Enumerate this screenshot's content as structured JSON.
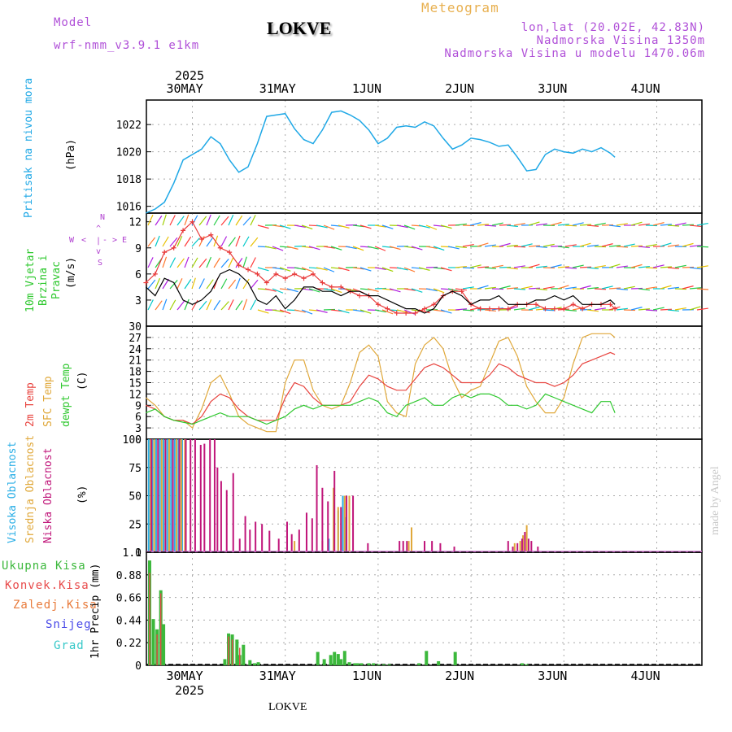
{
  "header": {
    "model_label": "Model",
    "model_name": "wrf-nmm_v3.9.1 e1km",
    "title": "LOKVE",
    "app_title": "Meteogram",
    "coords": "lon,lat (20.02E, 42.83N)",
    "elevation": "Nadmorska Visina 1350m",
    "model_elevation": "Nadmorska Visina u modelu 1470.06m",
    "year_top": "2025",
    "year_bottom": "2025",
    "footer_station": "LOKVE",
    "watermark": "made by Angel"
  },
  "colors": {
    "pressure": "#1fa8e6",
    "temp2m": "#e8433e",
    "sfc_temp": "#e0a83a",
    "dewpt": "#2ec82e",
    "cloud_high": "#29aee6",
    "cloud_mid": "#e0a83a",
    "cloud_low": "#c0167a",
    "rain_total": "#3cb83c",
    "rain_conv": "#e84a4a",
    "rain_frozen": "#e87a3a",
    "snow": "#4a4ae8",
    "hail": "#36c8c8",
    "wind_mean": "#000000",
    "wind_gust": "#e83a3a"
  },
  "chart_data": [
    {
      "type": "line",
      "panel": "pressure",
      "x_unit": "days since 30MAY 00Z",
      "x_ticks": [
        "30MAY",
        "31MAY",
        "1JUN",
        "2JUN",
        "3JUN",
        "4JUN"
      ],
      "title_label": "Pritisak na nivou mora",
      "ylabel": "(hPa)",
      "ylim": [
        1015.5,
        1023.8
      ],
      "yticks": [
        1016,
        1018,
        1020,
        1022
      ],
      "grid": true,
      "series": [
        {
          "name": "Pritisak na nivou mora",
          "x": [
            -0.5,
            -0.4,
            -0.3,
            -0.2,
            -0.1,
            0.0,
            0.1,
            0.2,
            0.3,
            0.4,
            0.5,
            0.6,
            0.7,
            0.8,
            0.9,
            1.0,
            1.1,
            1.2,
            1.3,
            1.4,
            1.5,
            1.6,
            1.7,
            1.8,
            1.9,
            2.0,
            2.1,
            2.2,
            2.3,
            2.4,
            2.5,
            2.6,
            2.7,
            2.8,
            2.9,
            3.0,
            3.1,
            3.2,
            3.3,
            3.4,
            3.5,
            3.6,
            3.7,
            3.8,
            3.9,
            4.0,
            4.1,
            4.2,
            4.3,
            4.4,
            4.5,
            4.55
          ],
          "values": [
            1015.5,
            1015.8,
            1016.3,
            1017.7,
            1019.4,
            1019.8,
            1020.2,
            1021.1,
            1020.6,
            1019.4,
            1018.5,
            1018.9,
            1020.6,
            1022.6,
            1022.7,
            1022.8,
            1021.7,
            1020.9,
            1020.6,
            1021.6,
            1022.9,
            1023.0,
            1022.7,
            1022.3,
            1021.6,
            1020.6,
            1021.0,
            1021.8,
            1021.9,
            1021.8,
            1022.2,
            1021.9,
            1021.0,
            1020.2,
            1020.5,
            1021.0,
            1020.9,
            1020.7,
            1020.4,
            1020.5,
            1019.6,
            1018.6,
            1018.7,
            1019.8,
            1020.2,
            1020.0,
            1019.9,
            1020.2,
            1020.0,
            1020.3,
            1019.9,
            1019.6
          ]
        }
      ]
    },
    {
      "type": "line",
      "panel": "wind",
      "title_label": "10m Vjetar Brzina i Pravac",
      "ylabel": "(m/s)",
      "ylim": [
        0,
        13
      ],
      "yticks": [
        3,
        6,
        9,
        12
      ],
      "compass": [
        "N",
        "W",
        "E",
        "S"
      ],
      "compass_marks": [
        "^",
        "v",
        "|",
        "<",
        ">",
        "-"
      ],
      "series": [
        {
          "name": "mean wind",
          "x": [
            -0.5,
            -0.4,
            -0.3,
            -0.2,
            -0.1,
            0.0,
            0.1,
            0.2,
            0.3,
            0.4,
            0.5,
            0.6,
            0.7,
            0.8,
            0.9,
            1.0,
            1.1,
            1.2,
            1.3,
            1.4,
            1.5,
            1.6,
            1.7,
            1.8,
            1.9,
            2.0,
            2.1,
            2.2,
            2.3,
            2.4,
            2.5,
            2.6,
            2.7,
            2.8,
            2.9,
            3.0,
            3.1,
            3.2,
            3.3,
            3.4,
            3.5,
            3.6,
            3.7,
            3.8,
            3.9,
            4.0,
            4.1,
            4.2,
            4.3,
            4.4,
            4.5,
            4.55
          ],
          "values": [
            4.5,
            3.5,
            5.5,
            5,
            3,
            2.5,
            3,
            4,
            6,
            6.5,
            6,
            5,
            3,
            2.5,
            3.5,
            2,
            3,
            4.5,
            4.5,
            4,
            4,
            3.5,
            4,
            4,
            3.5,
            3.5,
            3,
            2.5,
            2,
            2,
            1.5,
            2,
            3.5,
            4,
            3.5,
            2.5,
            3,
            3,
            3.5,
            2.5,
            2.5,
            2.5,
            3,
            3,
            3.5,
            3,
            3.5,
            2.5,
            2.5,
            2.5,
            3,
            2.5
          ]
        },
        {
          "name": "gust",
          "x": [
            -0.5,
            -0.4,
            -0.3,
            -0.2,
            -0.1,
            0.0,
            0.1,
            0.2,
            0.3,
            0.4,
            0.5,
            0.6,
            0.7,
            0.8,
            0.9,
            1.0,
            1.1,
            1.2,
            1.3,
            1.4,
            1.5,
            1.6,
            1.7,
            1.8,
            1.9,
            2.0,
            2.1,
            2.2,
            2.3,
            2.4,
            2.5,
            2.6,
            2.7,
            2.8,
            2.9,
            3.0,
            3.1,
            3.2,
            3.3,
            3.4,
            3.5,
            3.6,
            3.7,
            3.8,
            3.9,
            4.0,
            4.1,
            4.2,
            4.3,
            4.4,
            4.5,
            4.55
          ],
          "values": [
            5,
            6,
            8.5,
            9,
            11,
            12,
            10,
            10.5,
            9,
            8.5,
            7,
            6.5,
            6,
            5,
            6,
            5.5,
            6,
            5.5,
            6,
            5,
            4.5,
            4.5,
            4,
            3.5,
            3.5,
            2.5,
            2,
            1.5,
            1.5,
            1.5,
            2,
            2.5,
            3.5,
            4,
            4,
            2.5,
            2,
            2,
            2,
            2,
            2.5,
            2.5,
            2.5,
            2,
            2,
            2,
            2.5,
            2,
            2.5,
            2.5,
            2.5,
            2
          ]
        }
      ]
    },
    {
      "type": "line",
      "panel": "temperature",
      "title_labels": [
        "2m Temp",
        "SFC Temp",
        "dewpt Temp"
      ],
      "ylabel": "(C)",
      "ylim": [
        0,
        30
      ],
      "yticks": [
        0,
        3,
        6,
        9,
        12,
        15,
        18,
        21,
        24,
        27,
        30
      ],
      "grid": true,
      "series": [
        {
          "name": "2m Temp",
          "x": [
            -0.5,
            -0.4,
            -0.3,
            -0.2,
            -0.1,
            0.0,
            0.1,
            0.2,
            0.3,
            0.4,
            0.5,
            0.6,
            0.7,
            0.8,
            0.9,
            1.0,
            1.1,
            1.2,
            1.3,
            1.4,
            1.5,
            1.6,
            1.7,
            1.8,
            1.9,
            2.0,
            2.1,
            2.2,
            2.3,
            2.4,
            2.5,
            2.6,
            2.7,
            2.8,
            2.9,
            3.0,
            3.1,
            3.2,
            3.3,
            3.4,
            3.5,
            3.6,
            3.7,
            3.8,
            3.9,
            4.0,
            4.1,
            4.2,
            4.3,
            4.4,
            4.5,
            4.55
          ],
          "values": [
            9,
            8,
            6,
            5,
            5,
            4,
            6,
            10,
            12,
            11,
            8,
            6,
            5,
            5,
            5,
            11,
            15,
            14,
            11,
            9,
            9,
            9,
            10,
            14,
            17,
            16,
            14,
            13,
            13,
            16,
            19,
            20,
            19,
            17,
            15,
            15,
            15,
            17,
            20,
            19,
            17,
            16,
            15,
            15,
            14,
            15,
            17,
            20,
            21,
            22,
            23,
            22.5
          ]
        },
        {
          "name": "SFC Temp",
          "x": [
            -0.5,
            -0.4,
            -0.3,
            -0.2,
            -0.1,
            0.0,
            0.1,
            0.2,
            0.3,
            0.4,
            0.5,
            0.6,
            0.7,
            0.8,
            0.9,
            1.0,
            1.1,
            1.2,
            1.3,
            1.4,
            1.5,
            1.6,
            1.7,
            1.8,
            1.9,
            2.0,
            2.1,
            2.2,
            2.3,
            2.4,
            2.5,
            2.6,
            2.7,
            2.8,
            2.9,
            3.0,
            3.1,
            3.2,
            3.3,
            3.4,
            3.5,
            3.6,
            3.7,
            3.8,
            3.9,
            4.0,
            4.1,
            4.2,
            4.3,
            4.4,
            4.5,
            4.55
          ],
          "values": [
            11,
            9,
            6,
            5,
            5,
            3,
            8,
            15,
            17,
            12,
            6,
            4,
            3,
            2,
            2,
            15,
            21,
            21,
            13,
            9,
            8,
            9,
            15,
            23,
            25,
            22,
            10,
            7,
            6,
            20,
            25,
            27,
            24,
            16,
            11,
            13,
            14,
            20,
            26,
            27,
            22,
            14,
            10,
            7,
            7,
            11,
            20,
            27,
            28,
            28,
            28,
            27
          ]
        },
        {
          "name": "dewpt Temp",
          "x": [
            -0.5,
            -0.4,
            -0.3,
            -0.2,
            -0.1,
            0.0,
            0.1,
            0.2,
            0.3,
            0.4,
            0.5,
            0.6,
            0.7,
            0.8,
            0.9,
            1.0,
            1.1,
            1.2,
            1.3,
            1.4,
            1.5,
            1.6,
            1.7,
            1.8,
            1.9,
            2.0,
            2.1,
            2.2,
            2.3,
            2.4,
            2.5,
            2.6,
            2.7,
            2.8,
            2.9,
            3.0,
            3.1,
            3.2,
            3.3,
            3.4,
            3.5,
            3.6,
            3.7,
            3.8,
            3.9,
            4.0,
            4.1,
            4.2,
            4.3,
            4.4,
            4.5,
            4.55
          ],
          "values": [
            7,
            8,
            6,
            5,
            4.5,
            4,
            5,
            6,
            7,
            6,
            6,
            6,
            5,
            4,
            5,
            6,
            8,
            9,
            8,
            9,
            9,
            9,
            9,
            10,
            11,
            10,
            7,
            6,
            9,
            10,
            11,
            9,
            9,
            11,
            12,
            11,
            12,
            12,
            11,
            9,
            9,
            8,
            9,
            12,
            11,
            10,
            9,
            8,
            7,
            10,
            10,
            7
          ]
        }
      ]
    },
    {
      "type": "bar",
      "panel": "cloud",
      "title_labels": [
        "Visoka Oblacnost",
        "Srednja Oblacnost",
        "Niska Oblacnost"
      ],
      "ylabel": "(%)",
      "ylim": [
        0,
        100
      ],
      "yticks": [
        0,
        25,
        50,
        75,
        100
      ],
      "grid": true,
      "series": [
        {
          "name": "Visoka Oblacnost",
          "x": [
            -0.47,
            -0.43,
            -0.39,
            -0.35,
            -0.31,
            -0.27,
            -0.23,
            -0.19,
            -0.15,
            -0.11,
            1.47,
            1.57,
            1.62,
            1.65
          ],
          "values": [
            100,
            100,
            100,
            100,
            100,
            100,
            100,
            100,
            100,
            100,
            12,
            37,
            50,
            31
          ]
        },
        {
          "name": "Srednja Oblacnost",
          "x": [
            -0.45,
            -0.41,
            -0.33,
            -0.25,
            -0.17,
            -0.12,
            -0.08,
            1.1,
            1.4,
            1.52,
            1.57,
            1.64,
            1.69,
            2.33,
            2.36,
            3.47,
            3.53,
            3.56,
            3.6
          ],
          "values": [
            100,
            100,
            100,
            100,
            100,
            100,
            100,
            10,
            10,
            57,
            40,
            50,
            50,
            10,
            22,
            8,
            10,
            15,
            24
          ]
        },
        {
          "name": "Niska Oblacnost",
          "x": [
            -0.44,
            -0.37,
            -0.29,
            -0.21,
            -0.14,
            -0.07,
            -0.02,
            0.03,
            0.09,
            0.13,
            0.19,
            0.24,
            0.27,
            0.31,
            0.37,
            0.44,
            0.51,
            0.57,
            0.62,
            0.68,
            0.75,
            0.83,
            0.93,
            1.02,
            1.07,
            1.15,
            1.23,
            1.29,
            1.34,
            1.4,
            1.46,
            1.53,
            1.6,
            1.66,
            1.73,
            1.89,
            2.23,
            2.27,
            2.31,
            2.5,
            2.58,
            2.67,
            2.82,
            3.4,
            3.45,
            3.5,
            3.55,
            3.58,
            3.62,
            3.65,
            3.72
          ],
          "values": [
            100,
            100,
            100,
            100,
            100,
            100,
            100,
            100,
            95,
            96,
            100,
            100,
            75,
            63,
            55,
            70,
            12,
            32,
            20,
            27,
            25,
            19,
            12,
            27,
            16,
            20,
            35,
            30,
            77,
            57,
            45,
            72,
            40,
            50,
            50,
            8,
            10,
            10,
            10,
            10,
            10,
            8,
            5,
            10,
            5,
            8,
            12,
            18,
            12,
            10,
            5
          ]
        }
      ]
    },
    {
      "type": "bar",
      "panel": "precip",
      "title_labels": [
        "Ukupna Kisa",
        "Konvek.Kisa",
        "Zaledj.Kisa",
        "Snijeg",
        "Grad"
      ],
      "ylabel": "1hr Precip (mm)",
      "ylim": [
        0,
        1.1
      ],
      "yticks": [
        0,
        0.22,
        0.44,
        0.66,
        0.88,
        1.1
      ],
      "grid": true,
      "series": [
        {
          "name": "Ukupna Kisa",
          "x": [
            -0.46,
            -0.42,
            -0.38,
            -0.34,
            -0.31,
            0.35,
            0.39,
            0.43,
            0.48,
            0.51,
            0.55,
            0.62,
            0.67,
            0.71,
            1.35,
            1.42,
            1.49,
            1.53,
            1.57,
            1.6,
            1.64,
            1.69,
            1.75,
            1.78,
            1.82,
            1.9,
            1.95,
            2.0,
            2.06,
            2.12,
            2.44,
            2.52,
            2.65,
            2.83,
            3.55,
            3.6
          ],
          "values": [
            1.02,
            0.45,
            0.35,
            0.73,
            0.4,
            0.06,
            0.31,
            0.3,
            0.25,
            0.1,
            0.2,
            0.05,
            0.02,
            0.03,
            0.13,
            0.06,
            0.1,
            0.13,
            0.11,
            0.06,
            0.14,
            0.03,
            0.02,
            0.02,
            0.02,
            0.02,
            0.02,
            0.01,
            0.01,
            0.01,
            0.02,
            0.14,
            0.04,
            0.13,
            0.02,
            0.01
          ]
        },
        {
          "name": "Konvek.Kisa",
          "x": [
            -0.46,
            -0.38,
            -0.34,
            0.39,
            0.43,
            0.51
          ],
          "values": [
            0.9,
            0.3,
            0.7,
            0.28,
            0.25,
            0.17
          ]
        }
      ]
    }
  ]
}
